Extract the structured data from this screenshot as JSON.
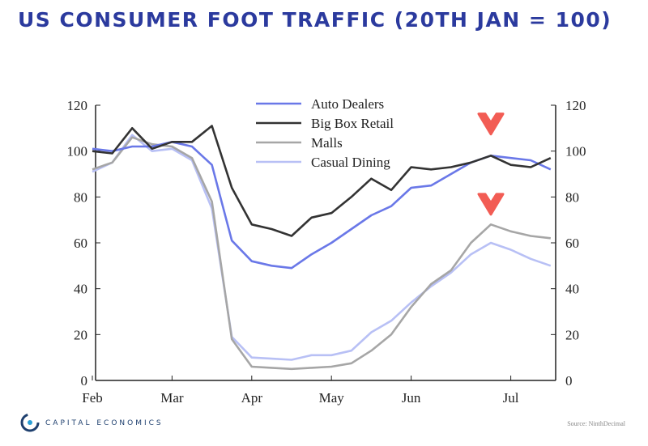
{
  "chart_data": {
    "type": "line",
    "title": "US CONSUMER FOOT TRAFFIC (20TH JAN = 100)",
    "x": [
      "Feb 1",
      "Feb 8",
      "Feb 15",
      "Feb 22",
      "Mar 1",
      "Mar 8",
      "Mar 15",
      "Mar 22",
      "Mar 29",
      "Apr 5",
      "Apr 12",
      "Apr 19",
      "Apr 26",
      "May 3",
      "May 10",
      "May 17",
      "May 24",
      "May 31",
      "Jun 7",
      "Jun 14",
      "Jun 21",
      "Jun 28",
      "Jul 5",
      "Jul 12"
    ],
    "x_tick_labels": [
      "Feb",
      "Mar",
      "Apr",
      "May",
      "Jun",
      "Jul"
    ],
    "x_tick_index": [
      0,
      4,
      8,
      12,
      16,
      21
    ],
    "ylim": [
      0,
      120
    ],
    "y_ticks": [
      0,
      20,
      40,
      60,
      80,
      100,
      120
    ],
    "legend_placement": "top-center",
    "series": [
      {
        "name": "Auto Dealers",
        "color": "#6a78e8",
        "values": [
          101,
          100,
          102,
          102,
          104,
          102,
          94,
          61,
          52,
          50,
          49,
          55,
          60,
          66,
          72,
          76,
          84,
          85,
          90,
          95,
          98,
          97,
          96,
          92
        ]
      },
      {
        "name": "Big Box Retail",
        "color": "#333333",
        "values": [
          100,
          99,
          110,
          101,
          104,
          104,
          111,
          84,
          68,
          66,
          63,
          71,
          73,
          80,
          88,
          83,
          93,
          92,
          93,
          95,
          98,
          94,
          93,
          97
        ]
      },
      {
        "name": "Malls",
        "color": "#a6a6a6",
        "values": [
          92,
          95,
          106,
          103,
          102,
          97,
          78,
          18,
          6,
          5.5,
          5,
          5.5,
          6,
          7.5,
          13,
          20,
          32,
          42,
          48,
          60,
          68,
          65,
          63,
          62
        ]
      },
      {
        "name": "Casual Dining",
        "color": "#b8c0f5",
        "values": [
          91,
          95,
          107,
          100,
          101,
          96,
          75,
          19,
          10,
          9.5,
          9,
          11,
          11,
          13,
          21,
          26,
          34,
          41,
          47,
          55,
          60,
          57,
          53,
          50
        ]
      }
    ],
    "annotations": [
      {
        "type": "arrow",
        "color": "#f25c54",
        "x_index": 20,
        "y": 112
      },
      {
        "type": "arrow",
        "color": "#f25c54",
        "x_index": 20,
        "y": 77
      }
    ]
  },
  "footer": {
    "logo_text": "CAPITAL ECONOMICS",
    "source": "Source: NinthDecimal"
  }
}
